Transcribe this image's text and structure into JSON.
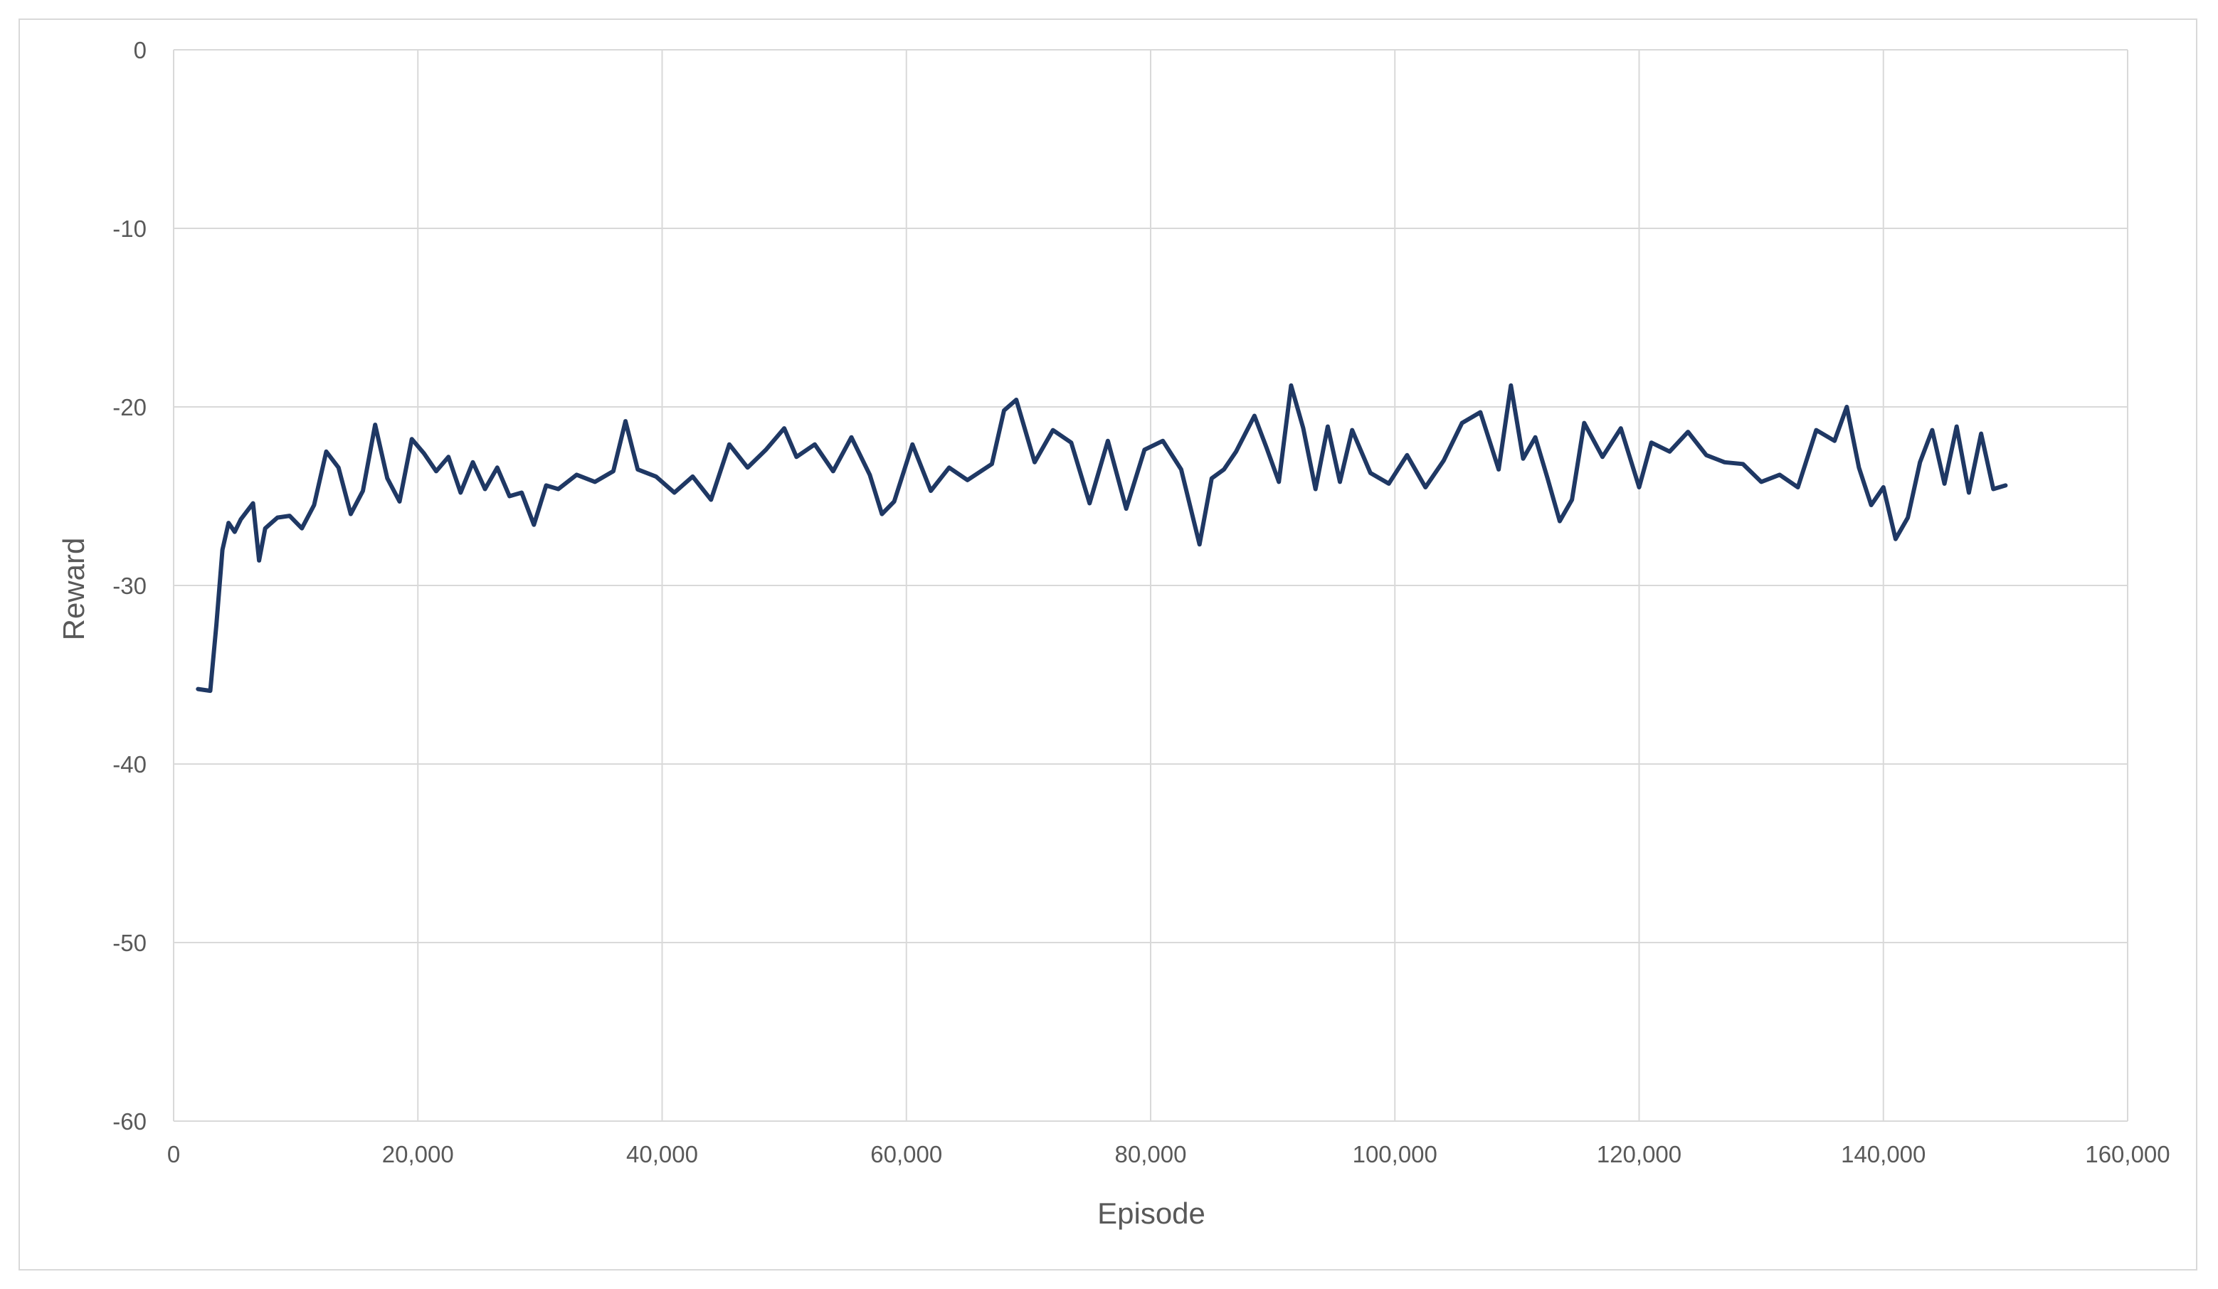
{
  "chart_data": {
    "type": "line",
    "title": "",
    "xlabel": "Episode",
    "ylabel": "Reward",
    "xlim": [
      0,
      160000
    ],
    "ylim": [
      -60,
      0
    ],
    "x_ticks": [
      0,
      20000,
      40000,
      60000,
      80000,
      100000,
      120000,
      140000,
      160000
    ],
    "x_tick_labels": [
      "0",
      "20,000",
      "40,000",
      "60,000",
      "80,000",
      "100,000",
      "120,000",
      "140,000",
      "160,000"
    ],
    "y_ticks": [
      0,
      -10,
      -20,
      -30,
      -40,
      -50,
      -60
    ],
    "y_tick_labels": [
      "0",
      "-10",
      "-20",
      "-30",
      "-40",
      "-50",
      "-60"
    ],
    "grid": true,
    "legend": "none",
    "series": [
      {
        "color": "#1f3864",
        "x": [
          2000,
          3000,
          3500,
          4000,
          4500,
          5000,
          5500,
          6500,
          7000,
          7500,
          8500,
          9500,
          10500,
          11500,
          12500,
          13500,
          14500,
          15500,
          16500,
          17500,
          18500,
          19500,
          20500,
          21500,
          22500,
          23500,
          24500,
          25500,
          26500,
          27500,
          28500,
          29500,
          30500,
          31500,
          33000,
          34500,
          36000,
          37000,
          38000,
          39500,
          41000,
          42500,
          44000,
          45500,
          47000,
          48500,
          50000,
          51000,
          52500,
          54000,
          55500,
          57000,
          58000,
          59000,
          60500,
          62000,
          63500,
          65000,
          67000,
          68000,
          69000,
          70500,
          72000,
          73500,
          75000,
          76500,
          78000,
          79500,
          81000,
          82500,
          84000,
          85000,
          86000,
          87000,
          88500,
          89500,
          90500,
          91500,
          92500,
          93500,
          94500,
          95500,
          96500,
          98000,
          99500,
          101000,
          102500,
          104000,
          105500,
          107000,
          108500,
          109500,
          110500,
          111500,
          112500,
          113500,
          114500,
          115500,
          117000,
          118500,
          120000,
          121000,
          122500,
          124000,
          125500,
          127000,
          128500,
          130000,
          131500,
          133000,
          134500,
          136000,
          137000,
          138000,
          139000,
          140000,
          141000,
          142000,
          143000,
          144000,
          145000,
          146000,
          147000,
          148000,
          149000,
          150000
        ],
        "values": [
          -35.8,
          -35.9,
          -32.2,
          -28.0,
          -26.5,
          -27.0,
          -26.3,
          -25.4,
          -28.6,
          -26.8,
          -26.2,
          -26.1,
          -26.8,
          -25.5,
          -22.5,
          -23.4,
          -26.0,
          -24.7,
          -21.0,
          -24.0,
          -25.3,
          -21.8,
          -22.6,
          -23.6,
          -22.8,
          -24.8,
          -23.1,
          -24.6,
          -23.4,
          -25.0,
          -24.8,
          -26.6,
          -24.4,
          -24.6,
          -23.8,
          -24.2,
          -23.6,
          -20.8,
          -23.5,
          -23.9,
          -24.8,
          -23.9,
          -25.2,
          -22.1,
          -23.4,
          -22.4,
          -21.2,
          -22.8,
          -22.1,
          -23.6,
          -21.7,
          -23.8,
          -26.0,
          -25.3,
          -22.1,
          -24.7,
          -23.4,
          -24.1,
          -23.2,
          -20.2,
          -19.6,
          -23.1,
          -21.3,
          -22.0,
          -25.4,
          -21.9,
          -25.7,
          -22.4,
          -21.9,
          -23.5,
          -27.7,
          -24.0,
          -23.5,
          -22.5,
          -20.5,
          -22.3,
          -24.2,
          -18.8,
          -21.2,
          -24.6,
          -21.1,
          -24.2,
          -21.3,
          -23.7,
          -24.3,
          -22.7,
          -24.5,
          -23.0,
          -20.9,
          -20.3,
          -23.5,
          -18.8,
          -22.9,
          -21.7,
          -24.0,
          -26.4,
          -25.2,
          -20.9,
          -22.8,
          -21.2,
          -24.5,
          -22.0,
          -22.5,
          -21.4,
          -22.7,
          -23.1,
          -23.2,
          -24.2,
          -23.8,
          -24.5,
          -21.3,
          -21.9,
          -20.0,
          -23.4,
          -25.5,
          -24.5,
          -27.4,
          -26.2,
          -23.1,
          -21.3,
          -24.3,
          -21.1,
          -24.8,
          -21.5,
          -24.6,
          -24.4
        ]
      }
    ]
  }
}
